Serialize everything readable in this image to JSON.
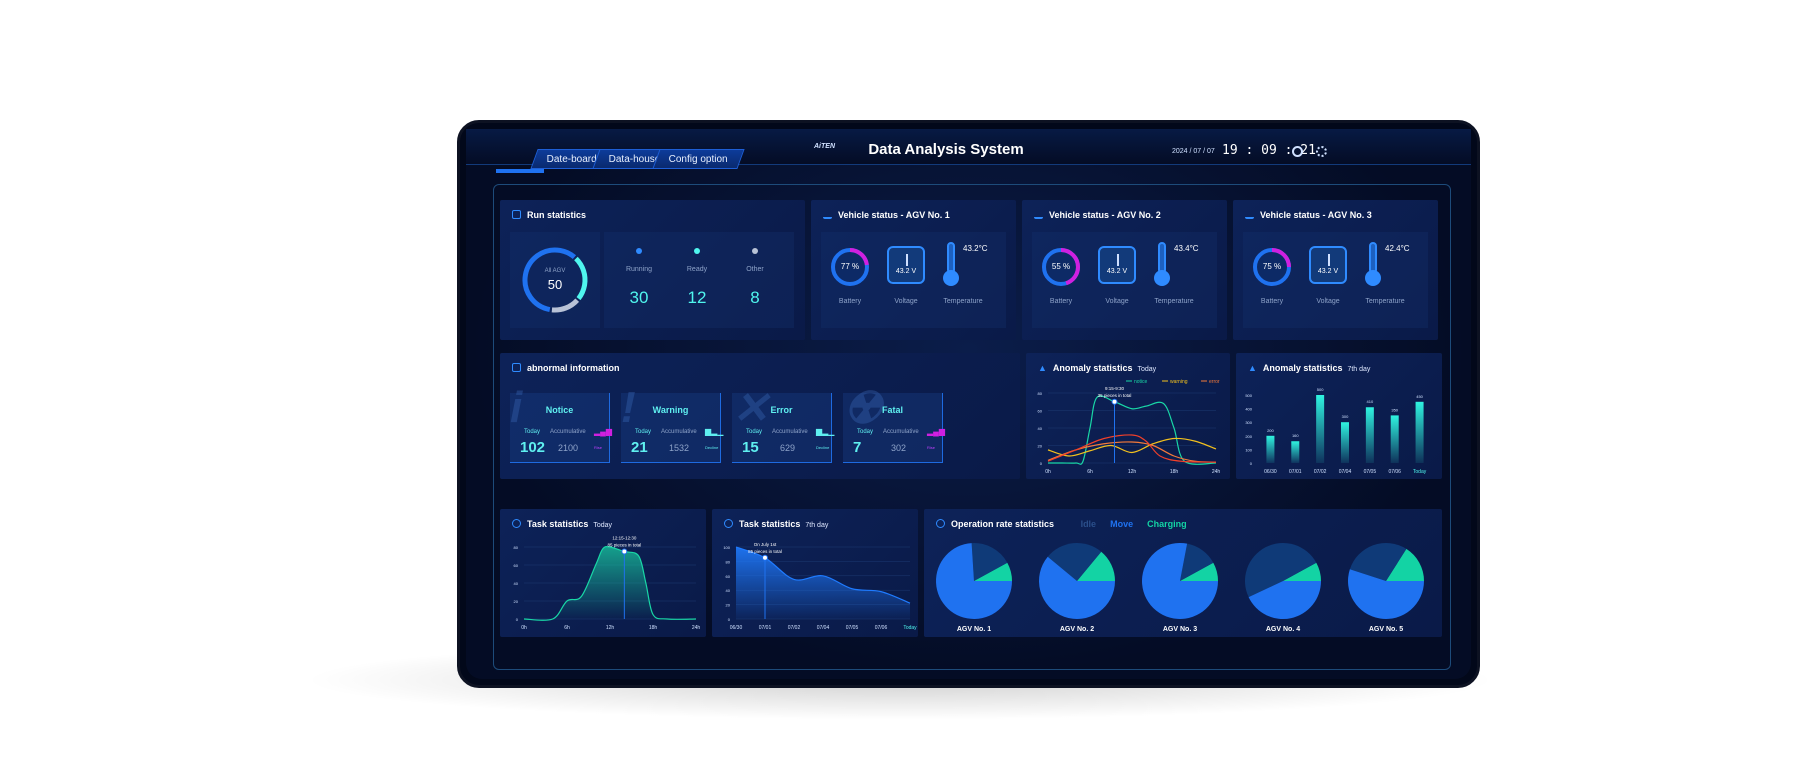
{
  "header": {
    "tabs": [
      "Date-board",
      "Data-house",
      "Config option"
    ],
    "logo": "AiTEN",
    "title": "Data Analysis System",
    "date": "2024 / 07 / 07",
    "time": "19 : 09 : 21",
    "icons": [
      "user-icon",
      "globe-icon"
    ]
  },
  "run": {
    "title": "Run statistics",
    "total_label": "All AGV",
    "total": "50",
    "items": [
      {
        "label": "Running",
        "value": "30",
        "color": "#2f8bff"
      },
      {
        "label": "Ready",
        "value": "12",
        "color": "#4ff6ee"
      },
      {
        "label": "Other",
        "value": "8",
        "color": "#b8c2d6"
      }
    ]
  },
  "vehicles": [
    {
      "title": "Vehicle status - AGV No. 1",
      "battery": "77 %",
      "battery_pct": 77,
      "voltage": "43.2 V",
      "temperature": "43.2°C",
      "labels": [
        "Battery",
        "Voltage",
        "Temperature"
      ]
    },
    {
      "title": "Vehicle status - AGV No. 2",
      "battery": "55 %",
      "battery_pct": 55,
      "voltage": "43.2 V",
      "temperature": "43.4°C",
      "labels": [
        "Battery",
        "Voltage",
        "Temperature"
      ]
    },
    {
      "title": "Vehicle status - AGV No. 3",
      "battery": "75 %",
      "battery_pct": 75,
      "voltage": "43.2 V",
      "temperature": "42.4°C",
      "labels": [
        "Battery",
        "Voltage",
        "Temperature"
      ]
    }
  ],
  "abnormal": {
    "title": "abnormal information",
    "cards": [
      {
        "name": "Notice",
        "glyph": "i",
        "today_label": "Today",
        "acc_label": "Accumulative",
        "today": "102",
        "acc": "2100",
        "trend": "Rise"
      },
      {
        "name": "Warning",
        "glyph": "!",
        "today_label": "Today",
        "acc_label": "Accumulative",
        "today": "21",
        "acc": "1532",
        "trend": "Decline"
      },
      {
        "name": "Error",
        "glyph": "✕",
        "today_label": "Today",
        "acc_label": "Accumulative",
        "today": "15",
        "acc": "629",
        "trend": "Decline"
      },
      {
        "name": "Fatal",
        "glyph": "☢",
        "today_label": "Today",
        "acc_label": "Accumulative",
        "today": "7",
        "acc": "302",
        "trend": "Rise"
      }
    ]
  },
  "chart_data": [
    {
      "id": "anomaly-today",
      "type": "line",
      "title": "Anomaly statistics",
      "subtitle": "Today",
      "xticks": [
        "0h",
        "6h",
        "12h",
        "18h",
        "24h"
      ],
      "xlim": [
        0,
        24
      ],
      "ylim": [
        0,
        80
      ],
      "yticks": [
        0,
        20,
        40,
        60,
        80
      ],
      "legend": "top-right",
      "tooltip": [
        "9:15-9:30",
        "35 pieces in total"
      ],
      "tooltip_x": 9.5,
      "series": [
        {
          "name": "notice",
          "color": "#19d7a6",
          "x": [
            0,
            2,
            4,
            5,
            6,
            7,
            9.5,
            12,
            14,
            16.5,
            18,
            19.5,
            24
          ],
          "y": [
            0,
            0,
            0,
            2,
            40,
            75,
            70,
            62,
            65,
            68,
            40,
            2,
            0
          ]
        },
        {
          "name": "warning",
          "color": "#f2c01e",
          "x": [
            0,
            3,
            6,
            9,
            12,
            15,
            18,
            21,
            24
          ],
          "y": [
            15,
            8,
            14,
            20,
            12,
            22,
            28,
            25,
            16
          ]
        },
        {
          "name": "error",
          "color": "#f47a3a",
          "x": [
            0,
            4,
            8,
            12,
            15,
            18,
            21,
            24
          ],
          "y": [
            3,
            15,
            22,
            24,
            20,
            8,
            2,
            1
          ]
        },
        {
          "name": "fatal",
          "color": "#f0402a",
          "x": [
            0,
            4,
            8,
            12,
            14,
            16,
            19,
            24
          ],
          "y": [
            2,
            15,
            28,
            32,
            25,
            8,
            2,
            1
          ]
        }
      ]
    },
    {
      "id": "anomaly-7day",
      "type": "bar",
      "title": "Anomaly statistics",
      "subtitle": "7th day",
      "categories": [
        "06/30",
        "07/01",
        "07/02",
        "07/04",
        "07/05",
        "07/06",
        "Today"
      ],
      "values": [
        200,
        160,
        500,
        300,
        410,
        350,
        450
      ],
      "ylim": [
        0,
        500
      ],
      "yticks": [
        0,
        100,
        200,
        300,
        400,
        500
      ]
    },
    {
      "id": "task-today",
      "type": "area",
      "title": "Task statistics",
      "subtitle": "Today",
      "xticks": [
        "0h",
        "6h",
        "12h",
        "18h",
        "24h"
      ],
      "xlim": [
        0,
        24
      ],
      "ylim": [
        0,
        80
      ],
      "yticks": [
        0,
        20,
        40,
        60,
        80
      ],
      "tooltip": [
        "12:15-12:30",
        "85 pieces in total"
      ],
      "tooltip_x": 14,
      "color": "#19d7a6",
      "x": [
        0,
        4,
        6,
        8,
        10,
        11,
        12,
        14,
        16,
        17,
        18,
        20,
        24
      ],
      "y": [
        0,
        0,
        20,
        25,
        60,
        78,
        80,
        75,
        70,
        40,
        5,
        0,
        0
      ]
    },
    {
      "id": "task-7day",
      "type": "area",
      "title": "Task statistics",
      "subtitle": "7th day",
      "categories": [
        "06/30",
        "07/01",
        "07/02",
        "07/04",
        "07/05",
        "07/06",
        "Today"
      ],
      "ylim": [
        0,
        100
      ],
      "yticks": [
        0,
        20,
        40,
        60,
        80,
        100
      ],
      "tooltip": [
        "On July 1st",
        "85 pieces in total"
      ],
      "tooltip_index": 1,
      "color": "#1f7bff",
      "values": [
        100,
        85,
        55,
        60,
        42,
        38,
        22
      ]
    },
    {
      "id": "operation-rate",
      "type": "pie",
      "title": "Operation rate statistics",
      "legend": [
        {
          "name": "Idle",
          "color": "#0f3a78"
        },
        {
          "name": "Move",
          "color": "#1f72f0"
        },
        {
          "name": "Charging",
          "color": "#13d3a4"
        }
      ],
      "pies": [
        {
          "label": "AGV No. 1",
          "charging": 8,
          "idle": 18,
          "move": 74
        },
        {
          "label": "AGV No. 2",
          "charging": 14,
          "idle": 25,
          "move": 61
        },
        {
          "label": "AGV No. 3",
          "charging": 8,
          "idle": 14,
          "move": 78
        },
        {
          "label": "AGV No. 4",
          "charging": 8,
          "idle": 49,
          "move": 43
        },
        {
          "label": "AGV No. 5",
          "charging": 16,
          "idle": 29,
          "move": 55
        }
      ]
    }
  ]
}
